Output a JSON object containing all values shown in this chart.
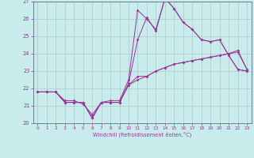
{
  "title": "",
  "xlabel": "Windchill (Refroidissement éolien,°C)",
  "background_color": "#c8ecec",
  "grid_color": "#b0c8c8",
  "line_color": "#993399",
  "spine_color": "#666688",
  "xlim": [
    -0.5,
    23.5
  ],
  "ylim": [
    20,
    27
  ],
  "xticks": [
    0,
    1,
    2,
    3,
    4,
    5,
    6,
    7,
    8,
    9,
    10,
    11,
    12,
    13,
    14,
    15,
    16,
    17,
    18,
    19,
    20,
    21,
    22,
    23
  ],
  "yticks": [
    20,
    21,
    22,
    23,
    24,
    25,
    26,
    27
  ],
  "series1_x": [
    0,
    1,
    2,
    3,
    4,
    5,
    6,
    7,
    8,
    9,
    10,
    11,
    12,
    13,
    14,
    15,
    16,
    17,
    18,
    19,
    20,
    21,
    22,
    23
  ],
  "series1_y": [
    21.8,
    21.8,
    21.8,
    21.2,
    21.2,
    21.2,
    20.3,
    21.2,
    21.2,
    21.2,
    22.2,
    22.7,
    22.7,
    23.0,
    23.2,
    23.4,
    23.5,
    23.6,
    23.7,
    23.8,
    23.9,
    24.0,
    24.1,
    23.1
  ],
  "series2_x": [
    0,
    1,
    2,
    3,
    4,
    5,
    6,
    7,
    8,
    9,
    10,
    11,
    12,
    13,
    14,
    15,
    16,
    17,
    18,
    19,
    20,
    21,
    22,
    23
  ],
  "series2_y": [
    21.8,
    21.8,
    21.8,
    21.3,
    21.3,
    21.1,
    20.5,
    21.2,
    21.3,
    21.3,
    22.5,
    26.5,
    26.0,
    25.4,
    27.2,
    26.6,
    25.8,
    25.4,
    24.8,
    24.7,
    24.8,
    23.9,
    23.1,
    23.0
  ],
  "series3_x": [
    0,
    1,
    2,
    3,
    4,
    5,
    6,
    7,
    8,
    9,
    10,
    11,
    12,
    13,
    14,
    15,
    16,
    17,
    18,
    19,
    20,
    21,
    22,
    23
  ],
  "series3_y": [
    21.8,
    21.8,
    21.8,
    21.2,
    21.2,
    21.2,
    20.3,
    21.2,
    21.2,
    21.2,
    22.3,
    24.8,
    26.1,
    25.3,
    27.2,
    26.6,
    25.8,
    25.4,
    24.8,
    24.7,
    24.8,
    23.9,
    23.1,
    23.0
  ],
  "series4_x": [
    0,
    1,
    2,
    3,
    4,
    5,
    6,
    7,
    8,
    9,
    10,
    11,
    12,
    13,
    14,
    15,
    16,
    17,
    18,
    19,
    20,
    21,
    22,
    23
  ],
  "series4_y": [
    21.8,
    21.8,
    21.8,
    21.2,
    21.2,
    21.2,
    20.3,
    21.2,
    21.2,
    21.2,
    22.2,
    22.5,
    22.7,
    23.0,
    23.2,
    23.4,
    23.5,
    23.6,
    23.7,
    23.8,
    23.9,
    24.0,
    24.2,
    23.1
  ]
}
